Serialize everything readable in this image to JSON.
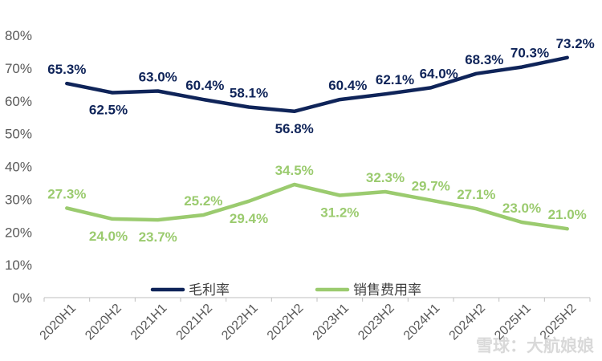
{
  "chart_data": {
    "type": "line",
    "title": "",
    "xlabel": "",
    "ylabel": "",
    "categories": [
      "2020H1",
      "2020H2",
      "2021H1",
      "2021H2",
      "2022H1",
      "2022H2",
      "2023H1",
      "2023H2",
      "2024H1",
      "2024H2",
      "2025H1",
      "2025H2"
    ],
    "ylim": [
      0,
      80
    ],
    "yticks": [
      "0%",
      "10%",
      "20%",
      "30%",
      "40%",
      "50%",
      "60%",
      "70%",
      "80%"
    ],
    "grid": false,
    "legend": "bottom-inside",
    "series": [
      {
        "name": "毛利率",
        "color": "#0f2459",
        "values": [
          65.3,
          62.5,
          63.0,
          60.4,
          58.1,
          56.8,
          60.4,
          62.1,
          64.0,
          68.3,
          70.3,
          73.2
        ],
        "labels": [
          "65.3%",
          "62.5%",
          "63.0%",
          "60.4%",
          "58.1%",
          "56.8%",
          "60.4%",
          "62.1%",
          "64.0%",
          "68.3%",
          "70.3%",
          "73.2%"
        ]
      },
      {
        "name": "销售费用率",
        "color": "#9bcb6f",
        "values": [
          27.3,
          24.0,
          23.7,
          25.2,
          29.4,
          34.5,
          31.2,
          32.3,
          29.7,
          27.1,
          23.0,
          21.0
        ],
        "labels": [
          "27.3%",
          "24.0%",
          "23.7%",
          "25.2%",
          "29.4%",
          "34.5%",
          "31.2%",
          "32.3%",
          "29.7%",
          "27.1%",
          "23.0%",
          "21.0%"
        ]
      }
    ]
  },
  "watermark": "雪球：大航娘娘"
}
